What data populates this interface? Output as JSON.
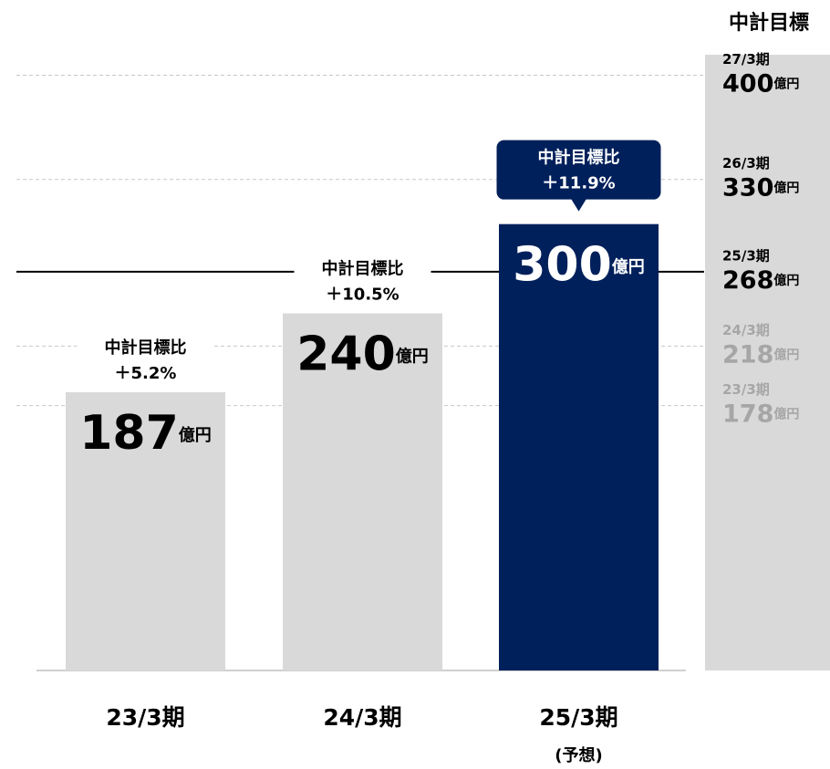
{
  "chart_data": {
    "type": "bar",
    "categories": [
      "23/3期",
      "24/3期",
      "25/3期"
    ],
    "category_notes": [
      null,
      null,
      "(予想)"
    ],
    "values": [
      187,
      240,
      300
    ],
    "unit": "億円",
    "colors": [
      "#d9d9d9",
      "#d9d9d9",
      "#00205b"
    ],
    "highlight": 2,
    "comparison_label": "中計目標比",
    "comparisons": [
      "＋5.2%",
      "＋10.5%",
      "＋11.9%"
    ],
    "ylim": [
      0,
      450
    ],
    "targets_title": "中計目標",
    "targets": [
      {
        "period": "27/3期",
        "value": 400,
        "color": "#000000",
        "line": "dashed"
      },
      {
        "period": "26/3期",
        "value": 330,
        "color": "#000000",
        "line": "dashed"
      },
      {
        "period": "25/3期",
        "value": 268,
        "color": "#000000",
        "line": "solid"
      },
      {
        "period": "24/3期",
        "value": 218,
        "color": "#a6a6a6",
        "line": "dashed"
      },
      {
        "period": "23/3期",
        "value": 178,
        "color": "#a6a6a6",
        "line": "dashed"
      }
    ]
  }
}
